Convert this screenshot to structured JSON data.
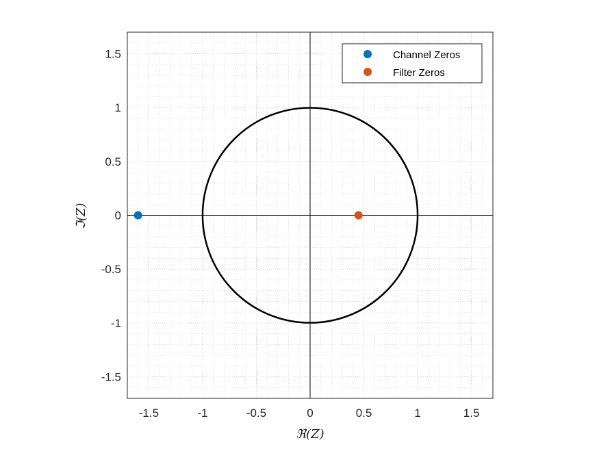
{
  "chart_data": {
    "type": "scatter",
    "title": "",
    "xlabel": "ℜ(Z)",
    "ylabel": "ℑ(Z)",
    "xlim": [
      -1.7,
      1.7
    ],
    "ylim": [
      -1.7,
      1.7
    ],
    "x_ticks": [
      -1.5,
      -1,
      -0.5,
      0,
      0.5,
      1,
      1.5
    ],
    "x_tick_labels": [
      "-1.5",
      "-1",
      "-0.5",
      "0",
      "0.5",
      "1",
      "1.5"
    ],
    "y_ticks": [
      1.5,
      1,
      0.5,
      0,
      -0.5,
      -1,
      -1.5
    ],
    "y_tick_labels": [
      "1.5",
      "1",
      "0.5",
      "0",
      "-0.5",
      "-1",
      "-1.5"
    ],
    "grid": true,
    "minor_grid": true,
    "unit_circle": {
      "center": [
        0,
        0
      ],
      "radius": 1,
      "color": "#000000"
    },
    "legend": {
      "position": "top-right"
    },
    "series": [
      {
        "name": "Channel Zeros",
        "color": "#0072BD",
        "points": [
          {
            "x": -1.6,
            "y": 0
          }
        ]
      },
      {
        "name": "Filter Zeros",
        "color": "#D95319",
        "points": [
          {
            "x": 0.45,
            "y": 0
          }
        ]
      }
    ]
  }
}
